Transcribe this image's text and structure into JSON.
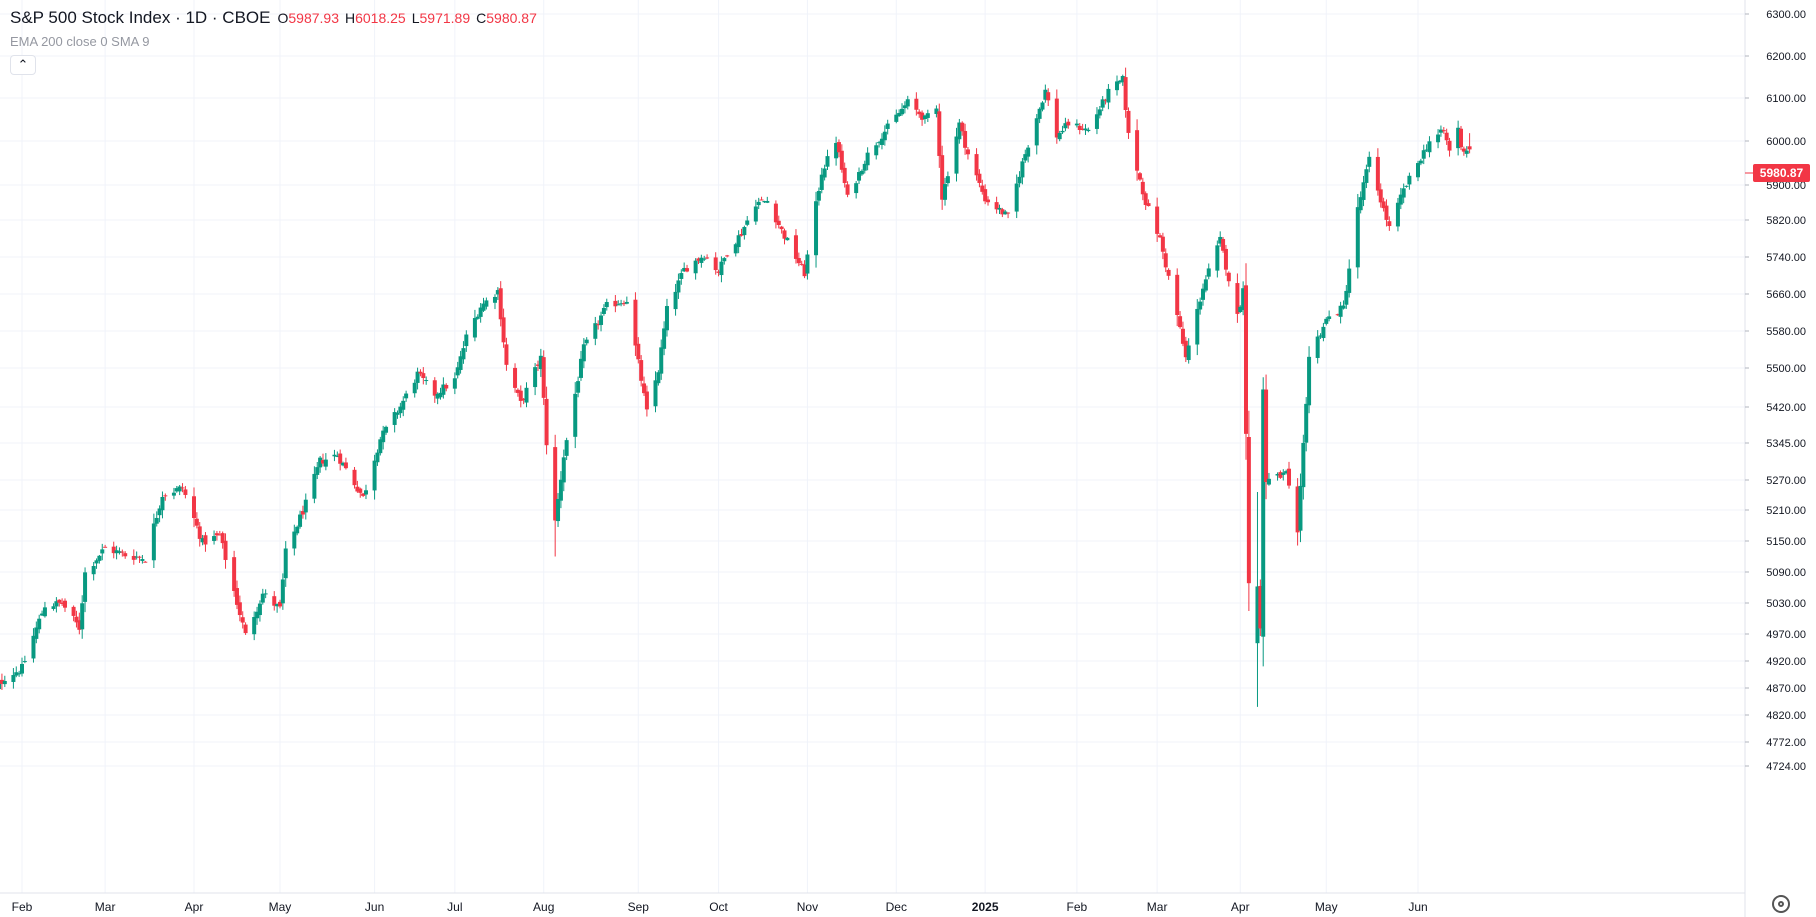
{
  "legend": {
    "symbol": "S&P 500 Stock Index · 1D · CBOE",
    "o_label": "O",
    "o_value": "5987.93",
    "h_label": "H",
    "h_value": "6018.25",
    "l_label": "L",
    "l_value": "5971.89",
    "c_label": "C",
    "c_value": "5980.87",
    "indicators": "EMA 200 close 0 SMA 9",
    "collapse_icon": "chevron-up-icon"
  },
  "last_price_tag": "5980.87",
  "colors": {
    "up": "#089981",
    "down": "#f23645",
    "bg": "#ffffff",
    "grid": "#f0f3fa",
    "axis_text": "#131722"
  },
  "chart_data": {
    "type": "candlestick",
    "y_ticks": [
      "6300.00",
      "6200.00",
      "6100.00",
      "6000.00",
      "5900.00",
      "5820.00",
      "5740.00",
      "5660.00",
      "5580.00",
      "5500.00",
      "5420.00",
      "5345.00",
      "5270.00",
      "5210.00",
      "5150.00",
      "5090.00",
      "5030.00",
      "4970.00",
      "4920.00",
      "4870.00",
      "4820.00",
      "4772.00",
      "4724.00"
    ],
    "y_tick_values": [
      6300,
      6200,
      6100,
      6000,
      5900,
      5820,
      5740,
      5660,
      5580,
      5500,
      5420,
      5345,
      5270,
      5210,
      5150,
      5090,
      5030,
      4970,
      4920,
      4870,
      4820,
      4772,
      4724
    ],
    "x_ticks": [
      {
        "label": "Feb",
        "date": "2024-02-01",
        "bold": false
      },
      {
        "label": "Mar",
        "date": "2024-03-01",
        "bold": false
      },
      {
        "label": "Apr",
        "date": "2024-04-01",
        "bold": false
      },
      {
        "label": "May",
        "date": "2024-05-01",
        "bold": false
      },
      {
        "label": "Jun",
        "date": "2024-06-03",
        "bold": false
      },
      {
        "label": "Jul",
        "date": "2024-07-01",
        "bold": false
      },
      {
        "label": "Aug",
        "date": "2024-08-01",
        "bold": false
      },
      {
        "label": "Sep",
        "date": "2024-09-03",
        "bold": false
      },
      {
        "label": "Oct",
        "date": "2024-10-01",
        "bold": false
      },
      {
        "label": "Nov",
        "date": "2024-11-01",
        "bold": false
      },
      {
        "label": "Dec",
        "date": "2024-12-02",
        "bold": false
      },
      {
        "label": "2025",
        "date": "2025-01-02",
        "bold": true
      },
      {
        "label": "Feb",
        "date": "2025-02-03",
        "bold": false
      },
      {
        "label": "Mar",
        "date": "2025-03-03",
        "bold": false
      },
      {
        "label": "Apr",
        "date": "2025-04-01",
        "bold": false
      },
      {
        "label": "May",
        "date": "2025-05-01",
        "bold": false
      },
      {
        "label": "Jun",
        "date": "2025-06-02",
        "bold": false
      }
    ],
    "x_range": [
      "2024-01-18",
      "2025-07-10"
    ],
    "close_anchors": [
      [
        "2024-01-19",
        4840
      ],
      [
        "2024-01-26",
        4890
      ],
      [
        "2024-02-01",
        4906
      ],
      [
        "2024-02-09",
        5026
      ],
      [
        "2024-02-15",
        5029
      ],
      [
        "2024-02-21",
        4982
      ],
      [
        "2024-02-23",
        5088
      ],
      [
        "2024-03-01",
        5137
      ],
      [
        "2024-03-08",
        5123
      ],
      [
        "2024-03-15",
        5117
      ],
      [
        "2024-03-21",
        5241
      ],
      [
        "2024-03-28",
        5254
      ],
      [
        "2024-04-04",
        5147
      ],
      [
        "2024-04-10",
        5160
      ],
      [
        "2024-04-19",
        4967
      ],
      [
        "2024-04-25",
        5048
      ],
      [
        "2024-05-01",
        5018
      ],
      [
        "2024-05-03",
        5127
      ],
      [
        "2024-05-10",
        5222
      ],
      [
        "2024-05-15",
        5308
      ],
      [
        "2024-05-21",
        5321
      ],
      [
        "2024-05-30",
        5235
      ],
      [
        "2024-06-05",
        5354
      ],
      [
        "2024-06-12",
        5421
      ],
      [
        "2024-06-18",
        5487
      ],
      [
        "2024-06-24",
        5447
      ],
      [
        "2024-07-01",
        5475
      ],
      [
        "2024-07-05",
        5567
      ],
      [
        "2024-07-10",
        5633
      ],
      [
        "2024-07-16",
        5667
      ],
      [
        "2024-07-19",
        5505
      ],
      [
        "2024-07-24",
        5427
      ],
      [
        "2024-07-31",
        5522
      ],
      [
        "2024-08-02",
        5346
      ],
      [
        "2024-08-05",
        5186
      ],
      [
        "2024-08-08",
        5319
      ],
      [
        "2024-08-15",
        5543
      ],
      [
        "2024-08-23",
        5634
      ],
      [
        "2024-08-30",
        5648
      ],
      [
        "2024-09-06",
        5408
      ],
      [
        "2024-09-10",
        5496
      ],
      [
        "2024-09-13",
        5626
      ],
      [
        "2024-09-19",
        5713
      ],
      [
        "2024-09-26",
        5745
      ],
      [
        "2024-10-01",
        5709
      ],
      [
        "2024-10-04",
        5751
      ],
      [
        "2024-10-09",
        5792
      ],
      [
        "2024-10-14",
        5859
      ],
      [
        "2024-10-18",
        5864
      ],
      [
        "2024-10-23",
        5797
      ],
      [
        "2024-10-31",
        5705
      ],
      [
        "2024-11-06",
        5929
      ],
      [
        "2024-11-11",
        6001
      ],
      [
        "2024-11-15",
        5870
      ],
      [
        "2024-11-22",
        5969
      ],
      [
        "2024-11-29",
        6032
      ],
      [
        "2024-12-06",
        6090
      ],
      [
        "2024-12-12",
        6051
      ],
      [
        "2024-12-16",
        6074
      ],
      [
        "2024-12-18",
        5872
      ],
      [
        "2024-12-24",
        6040
      ],
      [
        "2024-12-27",
        5970
      ],
      [
        "2025-01-02",
        5868
      ],
      [
        "2025-01-10",
        5827
      ],
      [
        "2025-01-15",
        5950
      ],
      [
        "2025-01-23",
        6118
      ],
      [
        "2025-01-27",
        6012
      ],
      [
        "2025-01-31",
        6040
      ],
      [
        "2025-02-07",
        6025
      ],
      [
        "2025-02-14",
        6114
      ],
      [
        "2025-02-19",
        6144
      ],
      [
        "2025-02-21",
        6013
      ],
      [
        "2025-02-27",
        5861
      ],
      [
        "2025-03-04",
        5778
      ],
      [
        "2025-03-10",
        5614
      ],
      [
        "2025-03-13",
        5521
      ],
      [
        "2025-03-19",
        5675
      ],
      [
        "2025-03-25",
        5776
      ],
      [
        "2025-03-31",
        5611
      ],
      [
        "2025-04-02",
        5670
      ],
      [
        "2025-04-04",
        5074
      ],
      [
        "2025-04-08",
        4982
      ],
      [
        "2025-04-09",
        5456
      ],
      [
        "2025-04-10",
        5268
      ],
      [
        "2025-04-17",
        5282
      ],
      [
        "2025-04-21",
        5158
      ],
      [
        "2025-04-25",
        5525
      ],
      [
        "2025-05-01",
        5604
      ],
      [
        "2025-05-07",
        5631
      ],
      [
        "2025-05-12",
        5844
      ],
      [
        "2025-05-16",
        5958
      ],
      [
        "2025-05-21",
        5844
      ],
      [
        "2025-05-23",
        5802
      ],
      [
        "2025-05-28",
        5888
      ],
      [
        "2025-06-06",
        6000
      ],
      [
        "2025-06-11",
        6022
      ],
      [
        "2025-06-13",
        5977
      ],
      [
        "2025-06-16",
        6033
      ],
      [
        "2025-06-17",
        5982
      ],
      [
        "2025-06-20",
        5980.87
      ]
    ],
    "last": {
      "open": 5987.93,
      "high": 6018.25,
      "low": 5971.89,
      "close": 5980.87
    },
    "grid": true,
    "price_axis": "right"
  }
}
